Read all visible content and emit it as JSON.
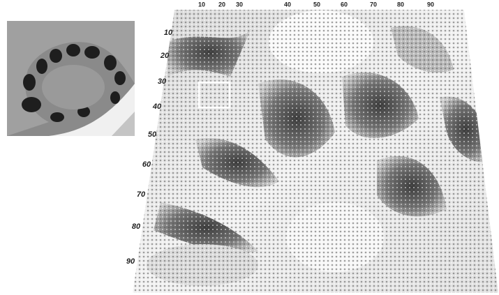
{
  "top_axis_labels": [
    "10",
    "20",
    "30",
    "40",
    "50",
    "60",
    "70",
    "80",
    "90"
  ],
  "left_axis_labels": [
    "10",
    "20",
    "30",
    "40",
    "50",
    "60",
    "70",
    "80",
    "90"
  ]
}
